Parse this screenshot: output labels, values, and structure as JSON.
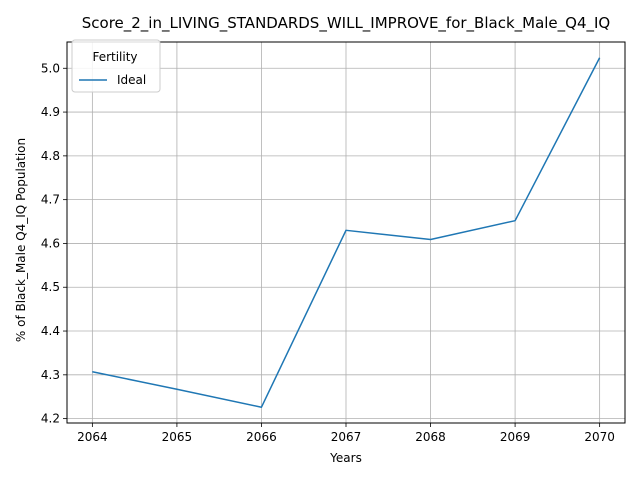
{
  "chart_data": {
    "type": "line",
    "title": "Score_2_in_LIVING_STANDARDS_WILL_IMPROVE_for_Black_Male_Q4_IQ",
    "xlabel": "Years",
    "ylabel": "% of Black_Male Q4_IQ Population",
    "x": [
      2064,
      2065,
      2066,
      2067,
      2068,
      2069,
      2070
    ],
    "series": [
      {
        "name": "Ideal",
        "values": [
          4.307,
          4.267,
          4.226,
          4.63,
          4.609,
          4.652,
          5.024
        ]
      }
    ],
    "xlim": [
      2063.7,
      2070.3
    ],
    "ylim": [
      4.19,
      5.06
    ],
    "xticks": [
      "2064",
      "2065",
      "2066",
      "2067",
      "2068",
      "2069",
      "2070"
    ],
    "yticks": [
      "4.2",
      "4.3",
      "4.4",
      "4.5",
      "4.6",
      "4.7",
      "4.8",
      "4.9",
      "5.0"
    ],
    "grid": true,
    "legend": {
      "title": "Fertility",
      "position": "upper-left"
    },
    "colors": {
      "series": "#1f77b4",
      "grid": "#b0b0b0",
      "axes": "#000000"
    }
  }
}
